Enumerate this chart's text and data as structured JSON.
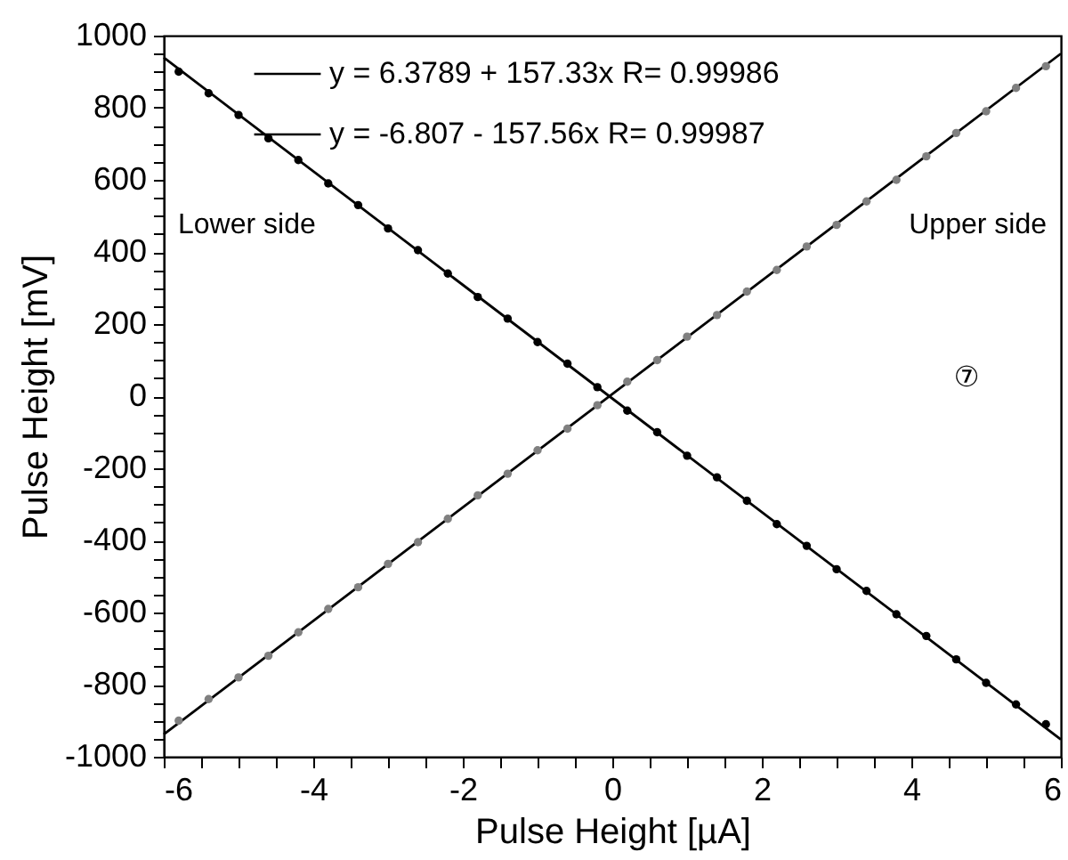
{
  "chart_data": {
    "type": "line",
    "xlabel": "Pulse Height [µA]",
    "ylabel": "Pulse Height [mV]",
    "xlim": [
      -6,
      6
    ],
    "ylim": [
      -1000,
      1000
    ],
    "xticks": [
      -6,
      {
        "value": -5.5,
        "label": null
      },
      {
        "value": -5,
        "label": null
      },
      {
        "value": -4.5,
        "label": null
      },
      -4,
      {
        "value": -3.5,
        "label": null
      },
      {
        "value": -3,
        "label": null
      },
      {
        "value": -2.5,
        "label": null
      },
      -2,
      {
        "value": -1.5,
        "label": null
      },
      {
        "value": -1,
        "label": null
      },
      {
        "value": -0.5,
        "label": null
      },
      0,
      {
        "value": 0.5,
        "label": null
      },
      {
        "value": 1,
        "label": null
      },
      {
        "value": 1.5,
        "label": null
      },
      2,
      {
        "value": 2.5,
        "label": null
      },
      {
        "value": 3,
        "label": null
      },
      {
        "value": 3.5,
        "label": null
      },
      4,
      {
        "value": 4.5,
        "label": null
      },
      {
        "value": 5,
        "label": null
      },
      {
        "value": 5.5,
        "label": null
      },
      6
    ],
    "yticks": [
      -1000,
      {
        "value": -950,
        "label": null
      },
      {
        "value": -900,
        "label": null
      },
      {
        "value": -850,
        "label": null
      },
      -800,
      {
        "value": -750,
        "label": null
      },
      {
        "value": -700,
        "label": null
      },
      {
        "value": -650,
        "label": null
      },
      -600,
      {
        "value": -550,
        "label": null
      },
      {
        "value": -500,
        "label": null
      },
      {
        "value": -450,
        "label": null
      },
      -400,
      {
        "value": -350,
        "label": null
      },
      {
        "value": -300,
        "label": null
      },
      {
        "value": -250,
        "label": null
      },
      -200,
      {
        "value": -150,
        "label": null
      },
      {
        "value": -100,
        "label": null
      },
      {
        "value": -50,
        "label": null
      },
      0,
      {
        "value": 50,
        "label": null
      },
      {
        "value": 100,
        "label": null
      },
      {
        "value": 150,
        "label": null
      },
      200,
      {
        "value": 250,
        "label": null
      },
      {
        "value": 300,
        "label": null
      },
      {
        "value": 350,
        "label": null
      },
      400,
      {
        "value": 450,
        "label": null
      },
      {
        "value": 500,
        "label": null
      },
      {
        "value": 550,
        "label": null
      },
      600,
      {
        "value": 650,
        "label": null
      },
      {
        "value": 700,
        "label": null
      },
      {
        "value": 750,
        "label": null
      },
      800,
      {
        "value": 850,
        "label": null
      },
      {
        "value": 900,
        "label": null
      },
      {
        "value": 950,
        "label": null
      },
      1000
    ],
    "grid": false,
    "legend": "top",
    "marker": "circle",
    "series": [
      {
        "name": "y = 6.3789 + 157.33x   R= 0.99986",
        "color": "#000000",
        "marker": "none",
        "x": [
          -6,
          6
        ],
        "values": [
          -938,
          950
        ]
      },
      {
        "name": "y = -6.807 - 157.56x   R= 0.99987",
        "color": "#000000",
        "marker": "none",
        "x": [
          -6,
          6
        ],
        "values": [
          939,
          -952
        ]
      },
      {
        "type": "scatter",
        "color": "#808080",
        "x": [
          -5.8,
          -5.4,
          -5.0,
          -4.6,
          -4.2,
          -3.8,
          -3.4,
          -3.0,
          -2.6,
          -2.2,
          -1.8,
          -1.4,
          -1.0,
          -0.6,
          -0.2,
          0.2,
          0.6,
          1.0,
          1.4,
          1.8,
          2.2,
          2.6,
          3.0,
          3.4,
          3.8,
          4.2,
          4.6,
          5.0,
          5.4,
          5.8
        ],
        "values": [
          -900,
          -840,
          -780,
          -720,
          -655,
          -590,
          -530,
          -465,
          -405,
          -340,
          -275,
          -215,
          -150,
          -90,
          -25,
          40,
          100,
          165,
          225,
          290,
          350,
          415,
          475,
          540,
          600,
          665,
          730,
          790,
          855,
          915
        ]
      },
      {
        "type": "scatter",
        "color": "#000000",
        "x": [
          -5.8,
          -5.4,
          -5.0,
          -4.6,
          -4.2,
          -3.8,
          -3.4,
          -3.0,
          -2.6,
          -2.2,
          -1.8,
          -1.4,
          -1.0,
          -0.6,
          -0.2,
          0.2,
          0.6,
          1.0,
          1.4,
          1.8,
          2.2,
          2.6,
          3.0,
          3.4,
          3.8,
          4.2,
          4.6,
          5.0,
          5.4,
          5.8
        ],
        "values": [
          900,
          840,
          780,
          715,
          655,
          590,
          530,
          465,
          405,
          340,
          275,
          215,
          150,
          90,
          25,
          -40,
          -100,
          -165,
          -225,
          -290,
          -355,
          -415,
          -480,
          -540,
          -605,
          -665,
          -730,
          -795,
          -855,
          -910
        ]
      }
    ],
    "annotations": [
      "Lower side",
      "Upper side",
      "⑦"
    ]
  }
}
